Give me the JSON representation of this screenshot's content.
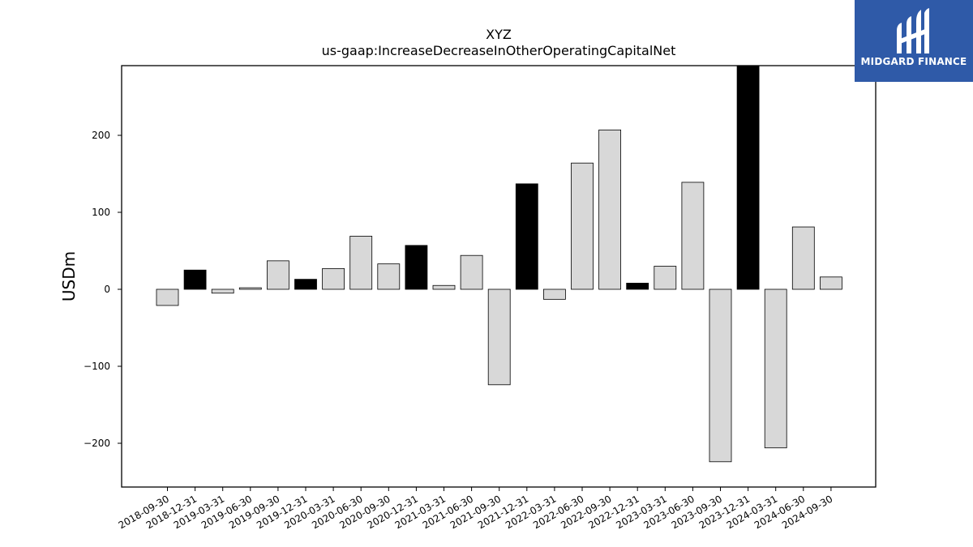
{
  "chart_data": {
    "type": "bar",
    "title": "XYZ",
    "subtitle": "us-gaap:IncreaseDecreaseInOtherOperatingCapitalNet",
    "xlabel": "",
    "ylabel": "USDm",
    "ylim": [
      -257,
      290
    ],
    "yticks": [
      200,
      100,
      0,
      -100,
      -200
    ],
    "ytick_labels": [
      "200",
      "100",
      "0",
      "−100",
      "−200"
    ],
    "grid": false,
    "categories": [
      "2018-09-30",
      "2018-12-31",
      "2019-03-31",
      "2019-06-30",
      "2019-09-30",
      "2019-12-31",
      "2020-03-31",
      "2020-06-30",
      "2020-09-30",
      "2020-12-31",
      "2021-03-31",
      "2021-06-30",
      "2021-09-30",
      "2021-12-31",
      "2022-03-31",
      "2022-06-30",
      "2022-09-30",
      "2022-12-31",
      "2023-03-31",
      "2023-06-30",
      "2023-09-30",
      "2023-12-31",
      "2024-03-31",
      "2024-06-30",
      "2024-09-30"
    ],
    "values": [
      -21,
      25,
      -5,
      2,
      37,
      13,
      27,
      69,
      33,
      57,
      5,
      44,
      -124,
      137,
      -13,
      164,
      207,
      8,
      30,
      139,
      -224,
      290,
      -206,
      81,
      16
    ],
    "highlight": [
      false,
      true,
      false,
      false,
      false,
      true,
      false,
      false,
      false,
      true,
      false,
      false,
      false,
      true,
      false,
      false,
      false,
      true,
      false,
      false,
      false,
      true,
      false,
      false,
      false
    ],
    "colors": {
      "bar": "#d8d8d8",
      "highlight": "#000000",
      "edge": "#000000"
    }
  },
  "logo": {
    "text": "MIDGARD FINANCE",
    "background": "#2f5aa8"
  }
}
